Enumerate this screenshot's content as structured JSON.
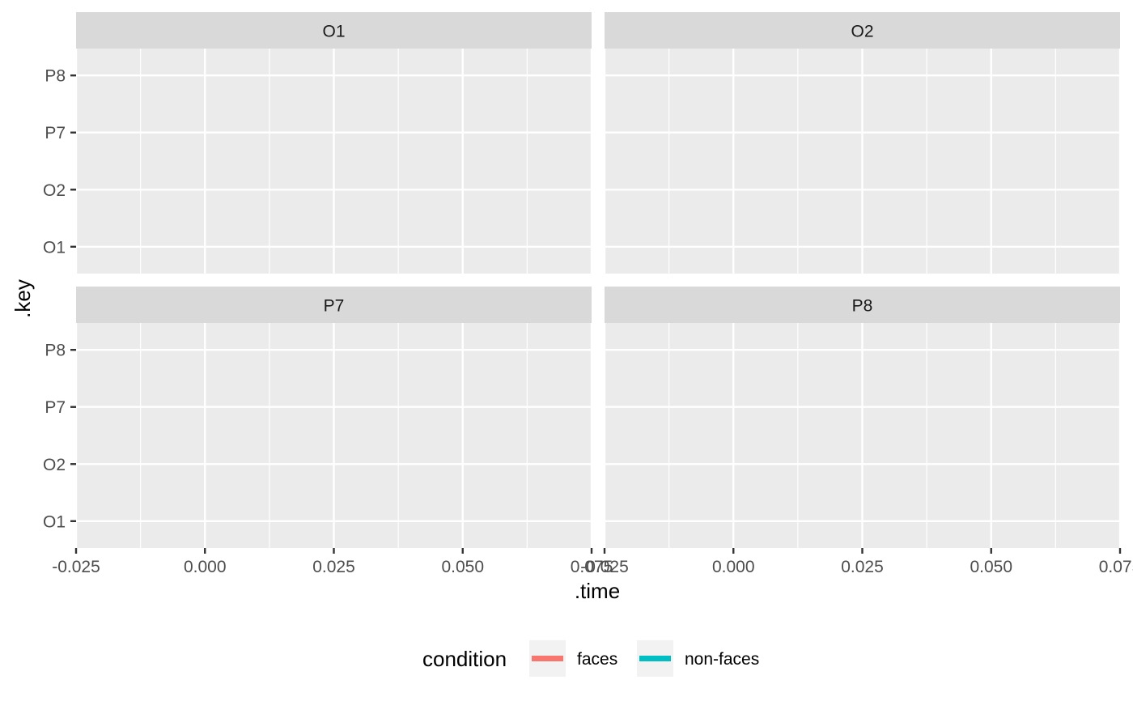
{
  "chart_data": {
    "type": "line",
    "facet_titles": [
      "O1",
      "O2",
      "P7",
      "P8"
    ],
    "xlabel": ".time",
    "ylabel": ".key",
    "xlim": [
      -0.025,
      0.075
    ],
    "x_ticks": [
      -0.025,
      0.0,
      0.025,
      0.05,
      0.075
    ],
    "x_tick_labels": [
      "-0.025",
      "0.000",
      "0.025",
      "0.050",
      "0.075"
    ],
    "y_categories": [
      "O1",
      "O2",
      "P7",
      "P8"
    ],
    "grid": true,
    "legend": {
      "title": "condition",
      "position": "bottom",
      "entries": [
        {
          "label": "faces",
          "color": "#F8766D"
        },
        {
          "label": "non-faces",
          "color": "#00BFC4"
        }
      ]
    },
    "series": [
      {
        "name": "faces",
        "color": "#F8766D",
        "values": []
      },
      {
        "name": "non-faces",
        "color": "#00BFC4",
        "values": []
      }
    ]
  },
  "colors": {
    "panel_background": "#EBEBEB",
    "strip_background": "#D9D9D9",
    "grid": "#FFFFFF",
    "tick": "#333333"
  }
}
